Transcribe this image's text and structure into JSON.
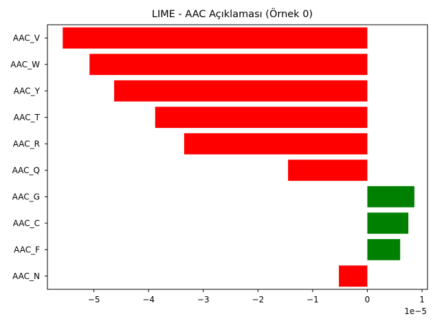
{
  "chart_data": {
    "type": "bar",
    "orientation": "horizontal",
    "title": "LIME - AAC Açıklaması (Örnek 0)",
    "xlabel": "",
    "ylabel": "",
    "axis_offset_label": "1e−5",
    "xlim": [
      -5.85,
      1.1
    ],
    "xticks": [
      -5,
      -4,
      -3,
      -2,
      -1,
      0,
      1
    ],
    "xtick_labels": [
      "−5",
      "−4",
      "−3",
      "−2",
      "−1",
      "0",
      "1"
    ],
    "categories": [
      "AAC_V",
      "AAC_W",
      "AAC_Y",
      "AAC_T",
      "AAC_R",
      "AAC_Q",
      "AAC_G",
      "AAC_C",
      "AAC_F",
      "AAC_N"
    ],
    "values": [
      -5.57,
      -5.08,
      -4.63,
      -3.88,
      -3.35,
      -1.45,
      0.86,
      0.75,
      0.6,
      -0.52
    ],
    "colors": {
      "negative": "#ff0000",
      "positive": "#008000"
    },
    "grid": false,
    "legend": false
  }
}
